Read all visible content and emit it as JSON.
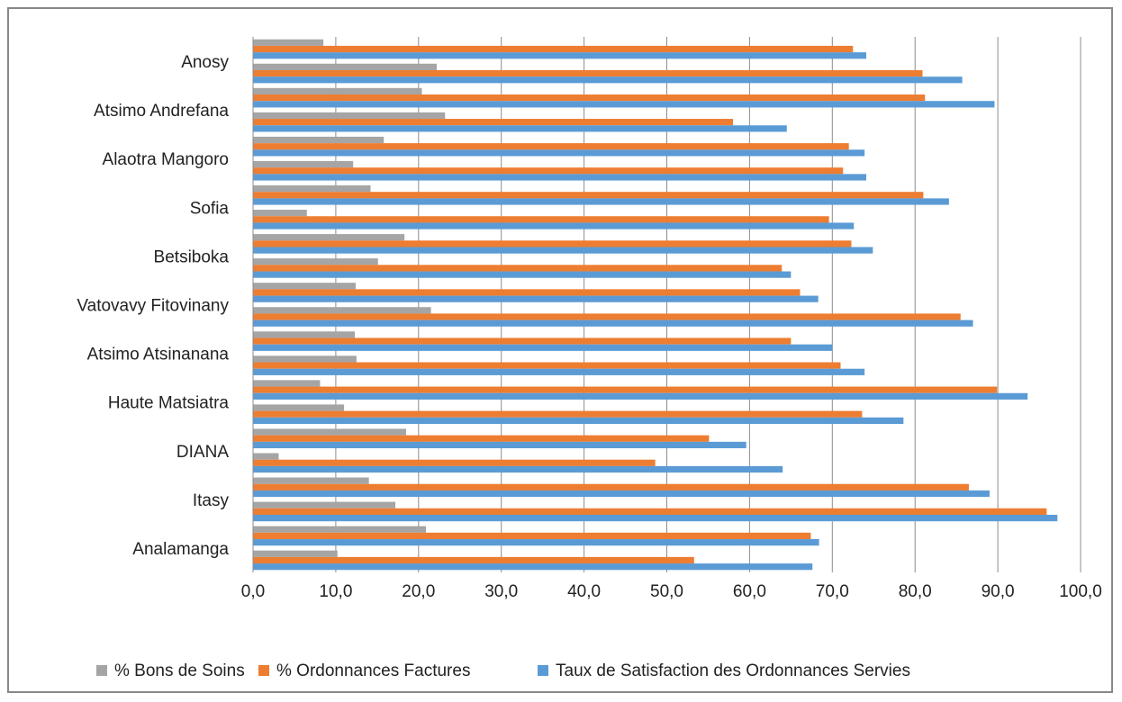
{
  "chart_data": {
    "type": "bar",
    "orientation": "horizontal",
    "category_labels": [
      "Analamanga",
      "Itasy",
      "DIANA",
      "Haute Matsiatra",
      "Atsimo Atsinanana",
      "Vatovavy Fitovinany",
      "Betsiboka",
      "Sofia",
      "Alaotra Mangoro",
      "Atsimo Andrefana",
      "Anosy"
    ],
    "rows": [
      {
        "bons": 10.2,
        "ordonnances": 53.3,
        "taux": 67.6
      },
      {
        "bons": 20.9,
        "ordonnances": 67.4,
        "taux": 68.4
      },
      {
        "bons": 17.2,
        "ordonnances": 95.9,
        "taux": 97.2
      },
      {
        "bons": 14.0,
        "ordonnances": 86.5,
        "taux": 89.0
      },
      {
        "bons": 3.1,
        "ordonnances": 48.6,
        "taux": 64.0
      },
      {
        "bons": 18.5,
        "ordonnances": 55.1,
        "taux": 59.6
      },
      {
        "bons": 11.0,
        "ordonnances": 73.6,
        "taux": 78.6
      },
      {
        "bons": 8.1,
        "ordonnances": 89.9,
        "taux": 93.6
      },
      {
        "bons": 12.5,
        "ordonnances": 71.0,
        "taux": 73.9
      },
      {
        "bons": 12.3,
        "ordonnances": 65.0,
        "taux": 70.0
      },
      {
        "bons": 21.5,
        "ordonnances": 85.5,
        "taux": 87.0
      },
      {
        "bons": 12.4,
        "ordonnances": 66.1,
        "taux": 68.3
      },
      {
        "bons": 15.1,
        "ordonnances": 63.9,
        "taux": 65.0
      },
      {
        "bons": 18.3,
        "ordonnances": 72.3,
        "taux": 74.9
      },
      {
        "bons": 6.5,
        "ordonnances": 69.6,
        "taux": 72.6
      },
      {
        "bons": 14.2,
        "ordonnances": 81.0,
        "taux": 84.1
      },
      {
        "bons": 12.1,
        "ordonnances": 71.3,
        "taux": 74.1
      },
      {
        "bons": 15.8,
        "ordonnances": 72.0,
        "taux": 73.9
      },
      {
        "bons": 23.2,
        "ordonnances": 58.0,
        "taux": 64.5
      },
      {
        "bons": 20.4,
        "ordonnances": 81.2,
        "taux": 89.6
      },
      {
        "bons": 22.2,
        "ordonnances": 80.9,
        "taux": 85.7
      },
      {
        "bons": 8.5,
        "ordonnances": 72.5,
        "taux": 74.1
      }
    ],
    "series": [
      {
        "key": "bons",
        "name": "% Bons de Soins",
        "color": "#a5a5a5"
      },
      {
        "key": "ordonnances",
        "name": "% Ordonnances Factures",
        "color": "#ed7d31"
      },
      {
        "key": "taux",
        "name": "Taux de Satisfaction des Ordonnances Servies",
        "color": "#5b9bd5"
      }
    ],
    "xlim": [
      0,
      100
    ],
    "xticks": [
      "0,0",
      "10,0",
      "20,0",
      "30,0",
      "40,0",
      "50,0",
      "60,0",
      "70,0",
      "80,0",
      "90,0",
      "100,0"
    ],
    "grid": true,
    "legend_position": "bottom"
  }
}
